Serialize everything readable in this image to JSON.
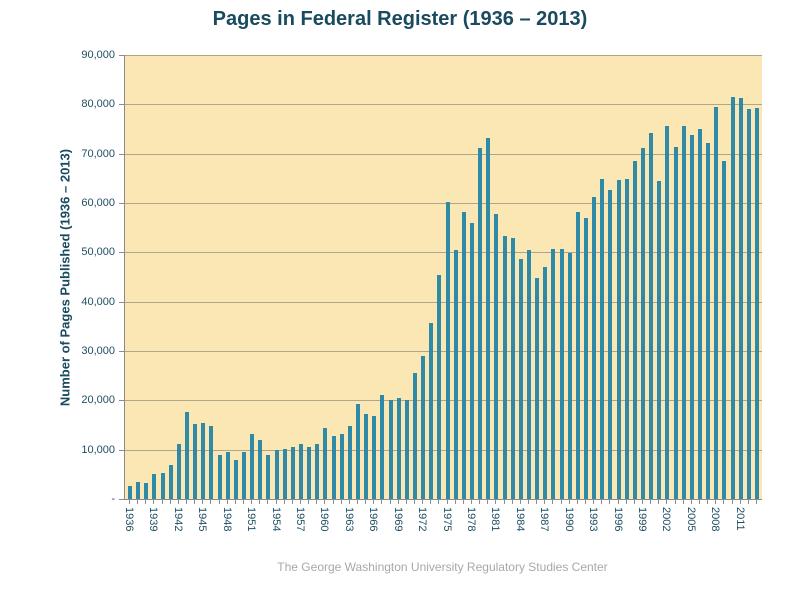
{
  "footer_text": "The George Washington University Regulatory Studies Center",
  "chart_data": {
    "type": "bar",
    "title": "Pages in Federal Register (1936 – 2013)",
    "ylabel": "Number of Pages Published (1936 – 2013)",
    "xlabel": "",
    "ylim": [
      0,
      90000
    ],
    "ytick_interval": 10000,
    "grid": true,
    "legend": "none",
    "bar_color": "#2E8AA6",
    "plot_bg_color": "#FAE7B4",
    "grid_color": "#ADA58D",
    "axis_color": "#8C8C8C",
    "title_color": "#1A4A5F",
    "tick_label_color": "#1F4E63",
    "footer_color": "#A8A8A8",
    "ytick_labels": [
      "-",
      "10,000",
      "20,000",
      "30,000",
      "40,000",
      "50,000",
      "60,000",
      "70,000",
      "80,000",
      "90,000"
    ],
    "xtick_years": [
      1936,
      1939,
      1942,
      1945,
      1948,
      1951,
      1954,
      1957,
      1960,
      1963,
      1966,
      1969,
      1972,
      1975,
      1978,
      1981,
      1984,
      1987,
      1990,
      1993,
      1996,
      1999,
      2002,
      2005,
      2008,
      2011
    ],
    "categories": [
      1936,
      1937,
      1938,
      1939,
      1940,
      1941,
      1942,
      1943,
      1944,
      1945,
      1946,
      1947,
      1948,
      1949,
      1950,
      1951,
      1952,
      1953,
      1954,
      1955,
      1956,
      1957,
      1958,
      1959,
      1960,
      1961,
      1962,
      1963,
      1964,
      1965,
      1966,
      1967,
      1968,
      1969,
      1970,
      1971,
      1972,
      1973,
      1974,
      1975,
      1976,
      1977,
      1978,
      1979,
      1980,
      1981,
      1982,
      1983,
      1984,
      1985,
      1986,
      1987,
      1988,
      1989,
      1990,
      1991,
      1992,
      1993,
      1994,
      1995,
      1996,
      1997,
      1998,
      1999,
      2000,
      2001,
      2002,
      2003,
      2004,
      2005,
      2006,
      2007,
      2008,
      2009,
      2010,
      2011,
      2012,
      2013
    ],
    "values": [
      2620,
      3450,
      3194,
      5007,
      5307,
      6877,
      11134,
      17553,
      15194,
      15508,
      14736,
      8902,
      9608,
      7952,
      9562,
      13175,
      11896,
      8912,
      9910,
      10196,
      10528,
      11156,
      10579,
      11116,
      14479,
      12792,
      13226,
      14842,
      19304,
      17206,
      16850,
      21088,
      20072,
      20466,
      20036,
      25447,
      28924,
      35592,
      45422,
      60221,
      50505,
      58200,
      56000,
      71191,
      73258,
      57800,
      53400,
      53000,
      48600,
      50502,
      44812,
      47000,
      50700,
      50600,
      49795,
      58200,
      57000,
      61166,
      64900,
      62645,
      64600,
      64800,
      68571,
      71200,
      74258,
      64438,
      75606,
      71269,
      75676,
      73870,
      74937,
      72090,
      79435,
      68598,
      81405,
      81247,
      78961,
      79311
    ]
  }
}
